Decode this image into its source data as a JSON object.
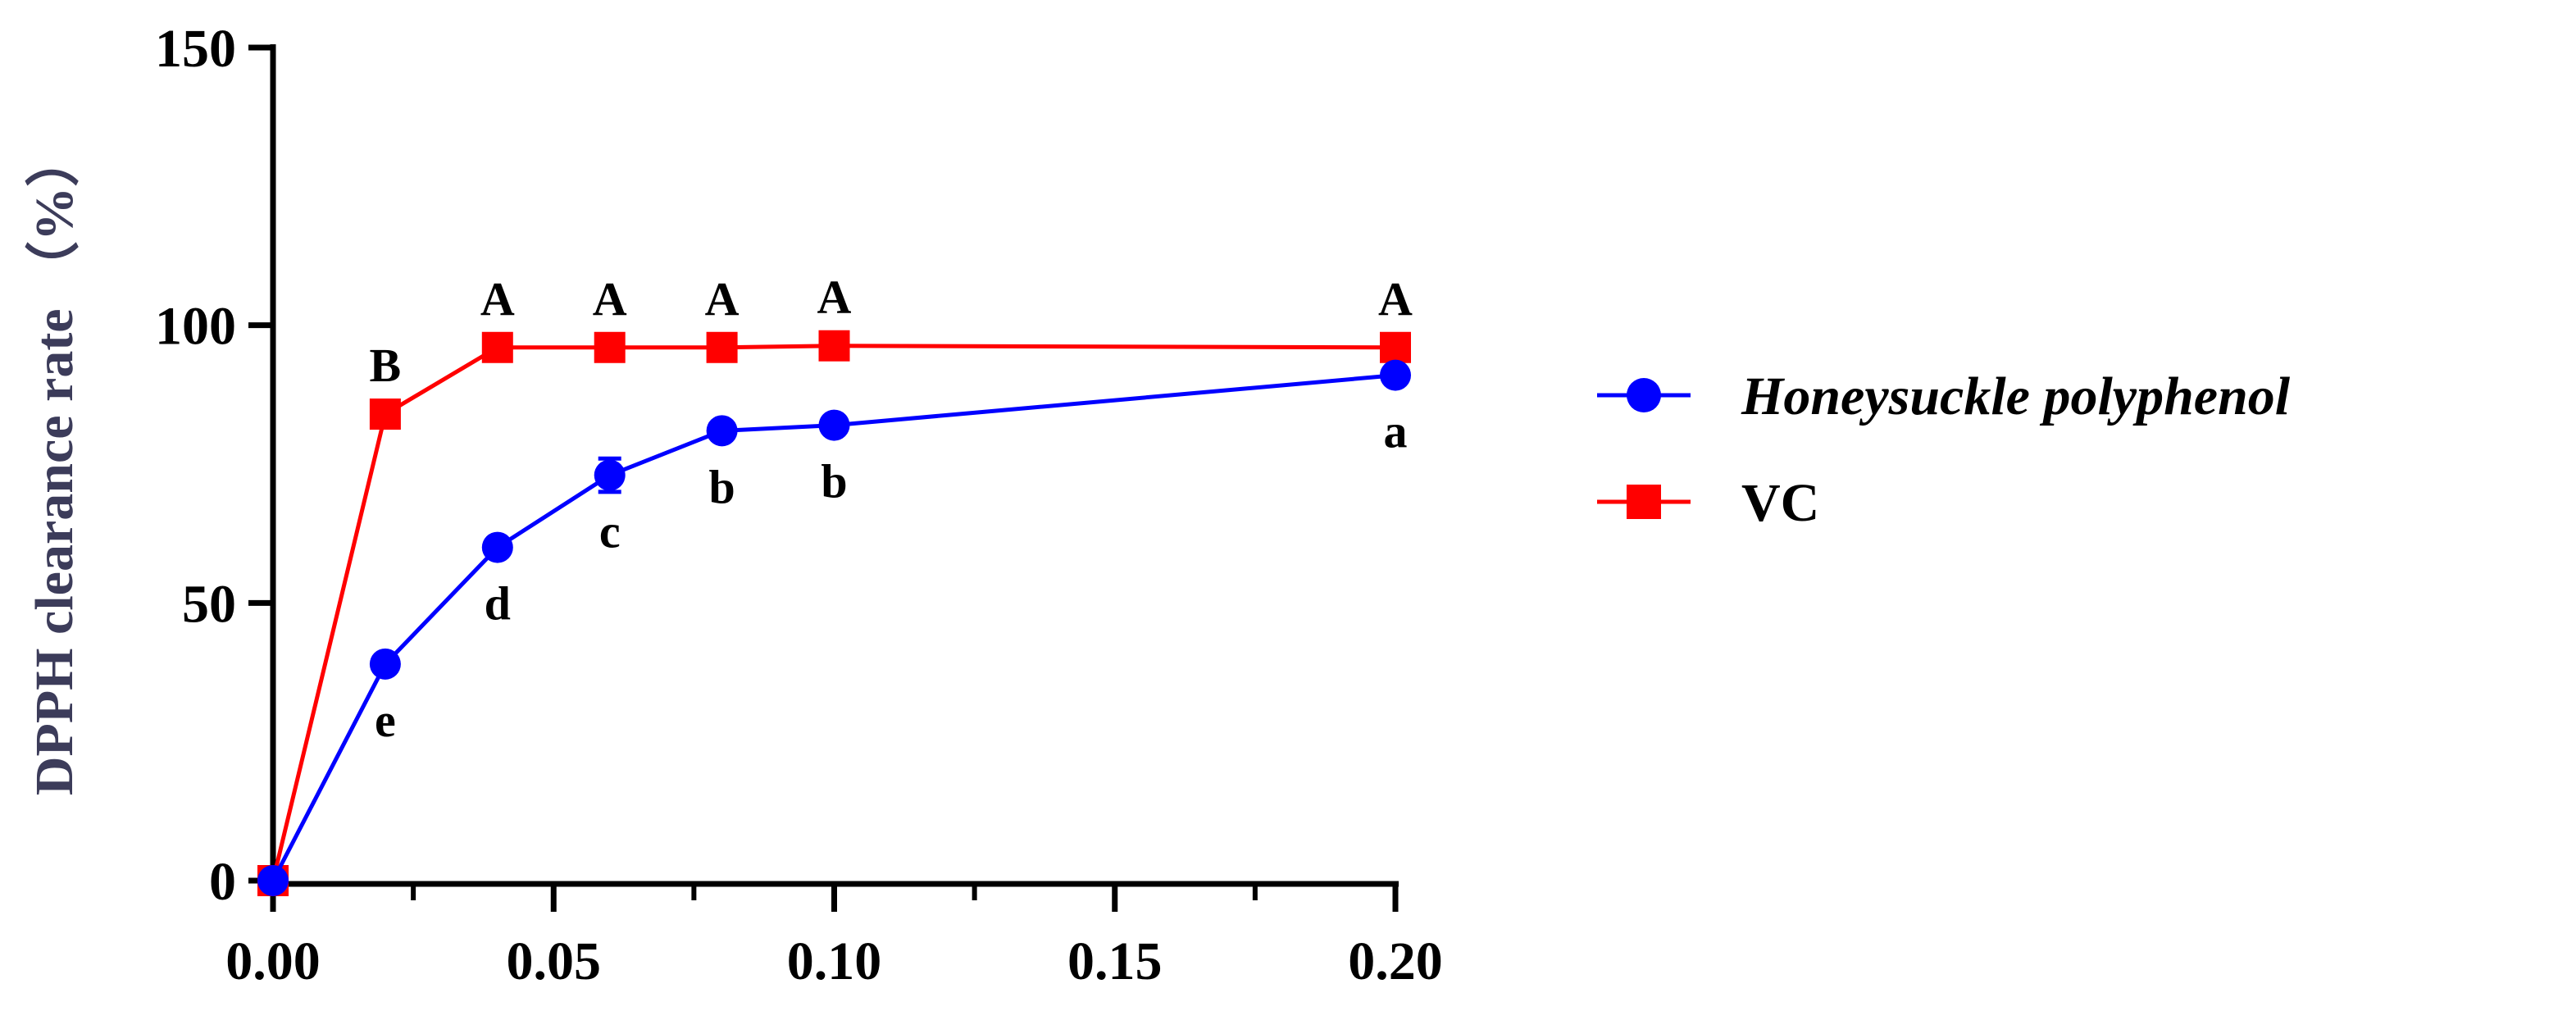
{
  "chart_data": {
    "type": "line",
    "title": "",
    "xlabel": "",
    "ylabel": "DPPH clearance rate （%）",
    "xlim": [
      0,
      0.2
    ],
    "ylim": [
      0,
      150
    ],
    "x_ticks": [
      0.0,
      0.05,
      0.1,
      0.15,
      0.2
    ],
    "x_tick_labels": [
      "0.00",
      "0.05",
      "0.10",
      "0.15",
      "0.20"
    ],
    "x_minor_ticks": [
      0.025,
      0.075,
      0.125,
      0.175
    ],
    "y_ticks": [
      0,
      50,
      100,
      150
    ],
    "y_tick_labels": [
      "0",
      "50",
      "100",
      "150"
    ],
    "legend_position": "right",
    "series": [
      {
        "name": "Honeysuckle polyphenol",
        "color": "#0000ff",
        "marker": "circle",
        "italic": true,
        "x": [
          0,
          0.02,
          0.04,
          0.06,
          0.08,
          0.1,
          0.2
        ],
        "values": [
          0,
          39,
          60,
          73,
          81,
          82,
          91
        ],
        "errors": [
          0,
          0,
          0,
          3,
          0,
          0,
          0
        ],
        "labels": [
          "",
          "e",
          "d",
          "c",
          "b",
          "b",
          "a"
        ],
        "label_position": "below"
      },
      {
        "name": "VC",
        "color": "#ff0000",
        "marker": "square",
        "italic": false,
        "x": [
          0,
          0.02,
          0.04,
          0.06,
          0.08,
          0.1,
          0.2
        ],
        "values": [
          0,
          84,
          96,
          96,
          96,
          96.3,
          96
        ],
        "errors": [
          0,
          0,
          0,
          0,
          0,
          0,
          0
        ],
        "labels": [
          "",
          "B",
          "A",
          "A",
          "A",
          "A",
          "A"
        ],
        "label_position": "above"
      }
    ]
  }
}
